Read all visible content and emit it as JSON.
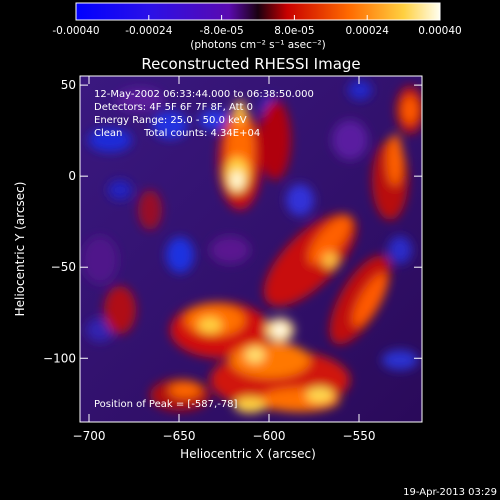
{
  "colorbar": {
    "ticks": [
      "-0.00040",
      "-0.00024",
      "-8.0e-05",
      "8.0e-05",
      "0.00024",
      "0.00040"
    ],
    "unit_label": "(photons cm⁻² s⁻¹ asec⁻²)",
    "range": [
      -0.0004,
      0.0004
    ],
    "colors": [
      "#0000ff",
      "#6600cc",
      "#ff0000",
      "#ff8c00",
      "#ffffcc"
    ]
  },
  "annotations": {
    "time_range": "12-May-2002 06:33:44.000 to 06:38:50.000",
    "detectors": "Detectors: 4F 5F 6F 7F 8F, Att 0",
    "energy_range": "Energy Range: 25.0 - 50.0 keV",
    "algorithm": "Clean",
    "total_counts": "Total counts: 4.34E+04",
    "peak_position": "Position of Peak = [-587,-78]"
  },
  "footer_date": "19-Apr-2013 03:29",
  "chart_data": {
    "type": "heatmap",
    "title": "Reconstructed RHESSI Image",
    "xlabel": "Heliocentric X (arcsec)",
    "ylabel": "Heliocentric Y (arcsec)",
    "xlim": [
      -705,
      -515
    ],
    "ylim": [
      -135,
      55
    ],
    "x_ticks": [
      -700,
      -650,
      -600,
      -550
    ],
    "y_ticks": [
      50,
      0,
      -50,
      -100
    ],
    "x_tick_labels": [
      "−700",
      "−650",
      "−600",
      "−550"
    ],
    "y_tick_labels": [
      "50",
      "0",
      "−50",
      "−100"
    ],
    "peak": {
      "x": -587,
      "y": -78
    },
    "grid": false
  }
}
